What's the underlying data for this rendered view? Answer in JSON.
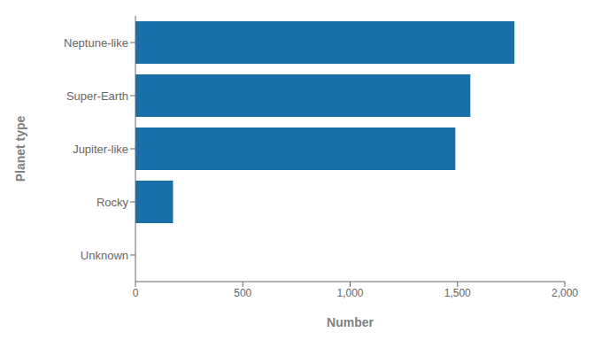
{
  "chart_data": {
    "type": "bar",
    "orientation": "horizontal",
    "categories": [
      "Neptune-like",
      "Super-Earth",
      "Jupiter-like",
      "Rocky",
      "Unknown"
    ],
    "values": [
      1765,
      1560,
      1490,
      175,
      0
    ],
    "color": "#1a6fa8",
    "xlabel": "Number",
    "ylabel": "Planet type",
    "xlim": [
      0,
      2000
    ],
    "xticks": [
      0,
      500,
      {
        "value": 1000,
        "label": "1,000"
      },
      {
        "value": 1500,
        "label": "1,500"
      },
      {
        "value": 2000,
        "label": "2,000"
      }
    ],
    "grid": false
  }
}
